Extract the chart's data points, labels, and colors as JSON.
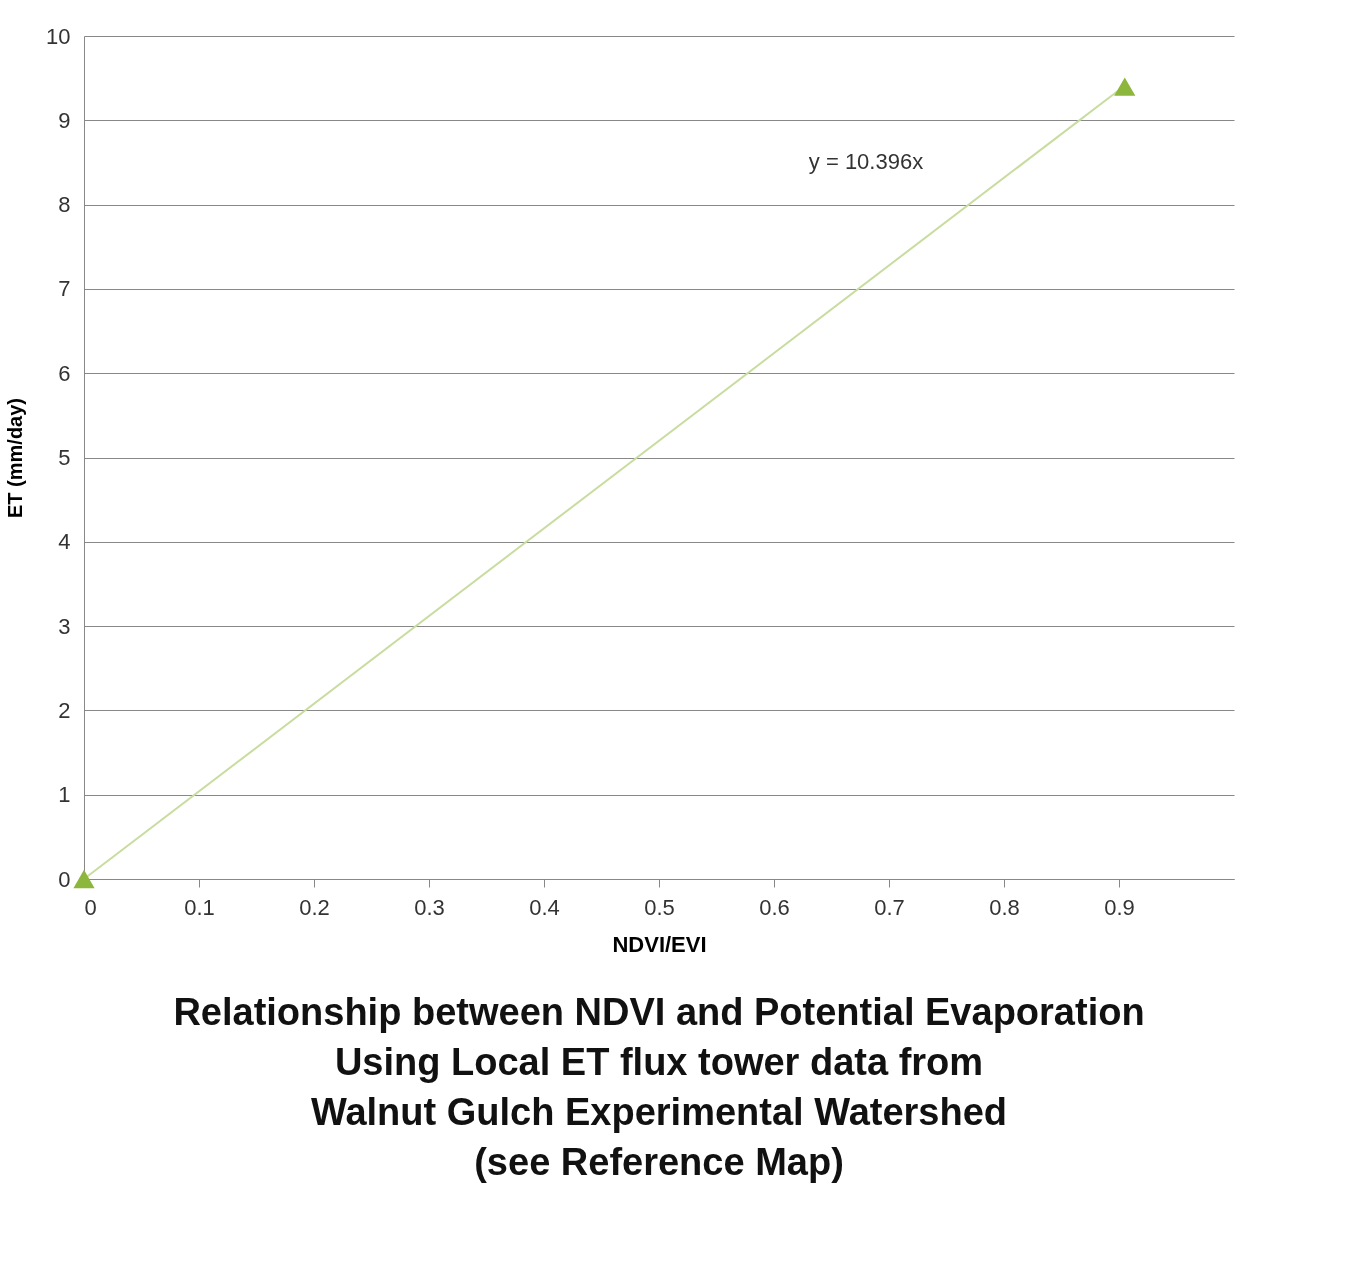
{
  "chart_data": {
    "type": "scatter",
    "title": [
      "Relationship between NDVI and Potential Evaporation",
      "Using Local ET flux tower data from",
      "Walnut Gulch Experimental Watershed",
      "(see Reference Map)"
    ],
    "xlabel": "NDVI/EVI",
    "ylabel": "ET (mm/day)",
    "xlim": [
      0,
      1
    ],
    "xticks": [
      0,
      0.1,
      0.2,
      0.3,
      0.4,
      0.5,
      0.6,
      0.7,
      0.8,
      0.9
    ],
    "ylim": [
      0,
      10
    ],
    "yticks": [
      0,
      1,
      2,
      3,
      4,
      5,
      6,
      7,
      8,
      9,
      10
    ],
    "grid": "y",
    "x": [
      0,
      0.905
    ],
    "series": [
      {
        "type": "line",
        "color": "#c9dca0",
        "values": [
          0,
          9.41
        ]
      },
      {
        "color": "#8db63c",
        "marker": "triangle",
        "values": [
          0,
          9.4
        ]
      }
    ],
    "annotations": [
      "y = 10.396x"
    ]
  }
}
